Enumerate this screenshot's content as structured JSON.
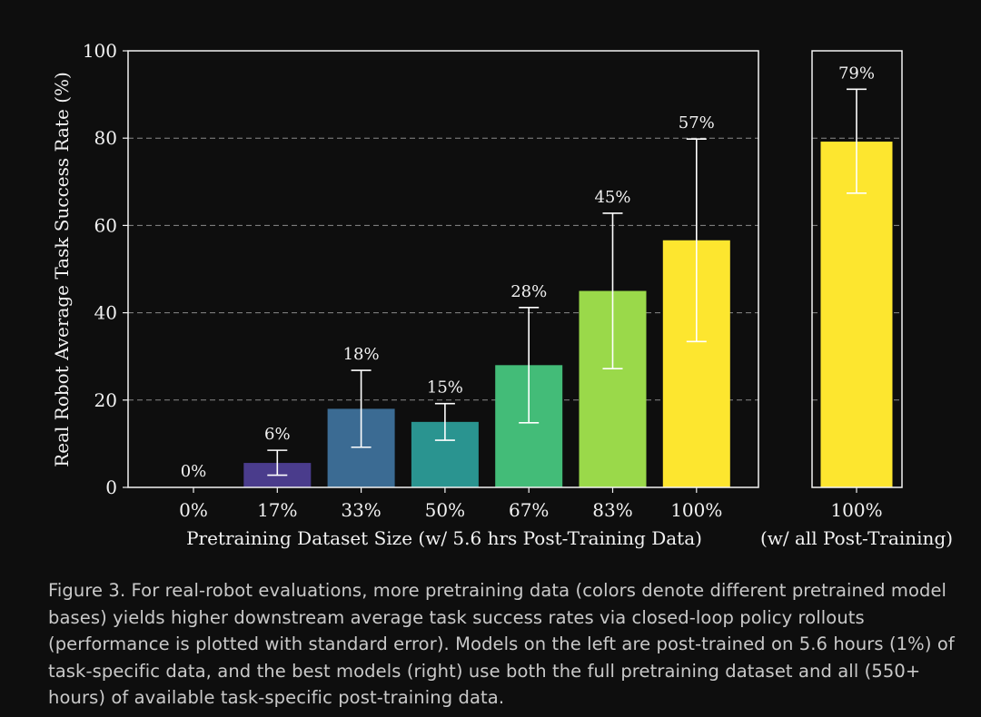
{
  "chart_data": [
    {
      "type": "bar",
      "title": "",
      "ylabel": "Real Robot Average Task Success Rate (%)",
      "xlabel": "Pretraining Dataset Size (w/ 5.6 hrs Post-Training Data)",
      "ylim": [
        0,
        100
      ],
      "yticks": [
        "0",
        "20",
        "40",
        "60",
        "80",
        "100"
      ],
      "grid": "horizontal-dashed",
      "categories": [
        "0%",
        "17%",
        "33%",
        "50%",
        "67%",
        "83%",
        "100%"
      ],
      "values": [
        0,
        5.6,
        18,
        15,
        28,
        45,
        56.6
      ],
      "error_low": [
        0,
        2.8,
        9.2,
        10.8,
        14.8,
        27.2,
        33.4
      ],
      "error_high": [
        0,
        8.5,
        26.8,
        19.2,
        41.2,
        62.8,
        79.8
      ],
      "data_labels": [
        "0%",
        "6%",
        "18%",
        "15%",
        "28%",
        "45%",
        "57%"
      ],
      "colors": [
        "#440154",
        "#4a3c8c",
        "#3b6b93",
        "#2a9490",
        "#43bc78",
        "#9ad94a",
        "#fde62f"
      ]
    },
    {
      "type": "bar",
      "xlabel": "(w/ all Post-Training)",
      "ylim": [
        0,
        100
      ],
      "categories": [
        "100%"
      ],
      "values": [
        79.2
      ],
      "error_low": [
        67.4
      ],
      "error_high": [
        91.2
      ],
      "data_labels": [
        "79%"
      ],
      "colors": [
        "#fde62f"
      ]
    }
  ],
  "caption": "Figure 3. For real-robot evaluations, more pretraining data (colors denote different pretrained model bases) yields higher downstream average task success rates via closed-loop policy rollouts (performance is plotted with standard error). Models on the left are post-trained on 5.6 hours (1%) of task-specific data, and the best models (right) use both the full pretraining dataset and all (550+ hours) of available task-specific post-training data."
}
